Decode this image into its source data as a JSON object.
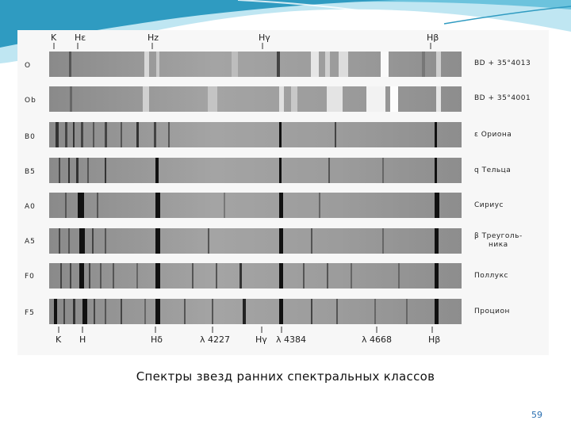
{
  "figure": {
    "top_labels": [
      "K",
      "Hε",
      "Hz",
      "Hγ",
      "Hβ"
    ],
    "bottom_labels": [
      "K",
      "H",
      "Hδ",
      "λ 4227",
      "Hγ",
      "λ 4384",
      "λ 4668",
      "Hβ"
    ],
    "rows": [
      {
        "class": "O",
        "star": "BD + 35°4013"
      },
      {
        "class": "Ob",
        "star": "BD + 35°4001"
      },
      {
        "class": "B0",
        "star": "ε Ориона"
      },
      {
        "class": "B5",
        "star": "q Тельца"
      },
      {
        "class": "A0",
        "star": "Сириус"
      },
      {
        "class": "A5",
        "star": "β Треуголь-\nника"
      },
      {
        "class": "F0",
        "star": "Поллукс"
      },
      {
        "class": "F5",
        "star": "Процион"
      }
    ]
  },
  "caption": "Спектры звезд ранних спектральных классов",
  "page_number": "59",
  "colors": {
    "wave_dark": "#2f9bc1",
    "wave_light": "#bfe6f2",
    "page_number": "#2a6fb0"
  }
}
